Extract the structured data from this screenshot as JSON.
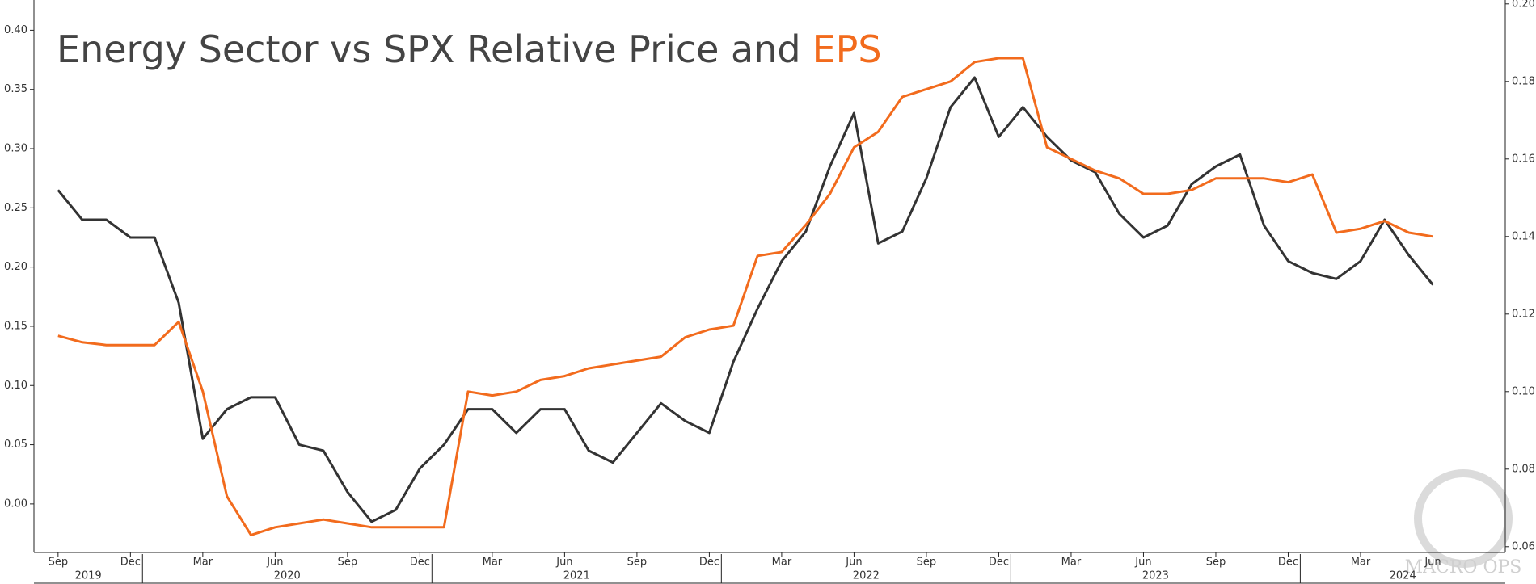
{
  "chart_data": {
    "type": "line",
    "title": "Energy Sector vs SPX Relative Price and",
    "title_highlight": "EPS",
    "watermark": "MACRO OPS",
    "x": [
      "2019-09",
      "2019-10",
      "2019-11",
      "2019-12",
      "2020-01",
      "2020-02",
      "2020-03",
      "2020-04",
      "2020-05",
      "2020-06",
      "2020-07",
      "2020-08",
      "2020-09",
      "2020-10",
      "2020-11",
      "2020-12",
      "2021-01",
      "2021-02",
      "2021-03",
      "2021-04",
      "2021-05",
      "2021-06",
      "2021-07",
      "2021-08",
      "2021-09",
      "2021-10",
      "2021-11",
      "2021-12",
      "2022-01",
      "2022-02",
      "2022-03",
      "2022-04",
      "2022-05",
      "2022-06",
      "2022-07",
      "2022-08",
      "2022-09",
      "2022-10",
      "2022-11",
      "2022-12",
      "2023-01",
      "2023-02",
      "2023-03",
      "2023-04",
      "2023-05",
      "2023-06",
      "2023-07",
      "2023-08",
      "2023-09",
      "2023-10",
      "2023-11",
      "2023-12",
      "2024-01",
      "2024-02",
      "2024-03",
      "2024-04",
      "2024-05",
      "2024-06"
    ],
    "series": [
      {
        "color": "#333333",
        "axis": "y",
        "values": [
          0.265,
          0.24,
          0.24,
          0.225,
          0.225,
          0.17,
          0.055,
          0.08,
          0.09,
          0.09,
          0.05,
          0.045,
          0.01,
          -0.015,
          -0.005,
          0.03,
          0.05,
          0.08,
          0.08,
          0.06,
          0.08,
          0.08,
          0.045,
          0.035,
          0.06,
          0.085,
          0.07,
          0.06,
          0.12,
          0.165,
          0.205,
          0.23,
          0.285,
          0.33,
          0.22,
          0.23,
          0.275,
          0.335,
          0.36,
          0.31,
          0.335,
          0.31,
          0.29,
          0.28,
          0.245,
          0.225,
          0.235,
          0.27,
          0.285,
          0.295,
          0.235,
          0.205,
          0.195,
          0.19,
          0.205,
          0.24,
          0.21,
          0.185
        ]
      },
      {
        "color": "#f26b1d",
        "axis": "y2",
        "values": [
          0.1144,
          0.1127,
          0.112,
          0.112,
          0.112,
          0.118,
          0.1,
          0.073,
          0.063,
          0.065,
          0.066,
          0.067,
          0.066,
          0.065,
          0.065,
          0.065,
          0.065,
          0.1,
          0.099,
          0.1,
          0.103,
          0.104,
          0.106,
          0.107,
          0.108,
          0.109,
          0.114,
          0.116,
          0.117,
          0.135,
          0.136,
          0.143,
          0.151,
          0.163,
          0.167,
          0.176,
          0.178,
          0.18,
          0.185,
          0.186,
          0.186,
          0.163,
          0.16,
          0.157,
          0.155,
          0.151,
          0.151,
          0.152,
          0.155,
          0.155,
          0.155,
          0.154,
          0.156,
          0.141,
          0.142,
          0.144,
          0.141,
          0.14
        ]
      }
    ],
    "xlim": [
      "2019-08",
      "2024-09"
    ],
    "xticks": [
      {
        "value": "2019-09",
        "label": "Sep"
      },
      {
        "value": "2019-12",
        "label": "Dec"
      },
      {
        "value": "2020-03",
        "label": "Mar"
      },
      {
        "value": "2020-06",
        "label": "Jun"
      },
      {
        "value": "2020-09",
        "label": "Sep"
      },
      {
        "value": "2020-12",
        "label": "Dec"
      },
      {
        "value": "2021-03",
        "label": "Mar"
      },
      {
        "value": "2021-06",
        "label": "Jun"
      },
      {
        "value": "2021-09",
        "label": "Sep"
      },
      {
        "value": "2021-12",
        "label": "Dec"
      },
      {
        "value": "2022-03",
        "label": "Mar"
      },
      {
        "value": "2022-06",
        "label": "Jun"
      },
      {
        "value": "2022-09",
        "label": "Sep"
      },
      {
        "value": "2022-12",
        "label": "Dec"
      },
      {
        "value": "2023-03",
        "label": "Mar"
      },
      {
        "value": "2023-06",
        "label": "Jun"
      },
      {
        "value": "2023-09",
        "label": "Sep"
      },
      {
        "value": "2023-12",
        "label": "Dec"
      },
      {
        "value": "2024-03",
        "label": "Mar"
      },
      {
        "value": "2024-06",
        "label": "Jun"
      }
    ],
    "years": [
      "2019",
      "2020",
      "2021",
      "2022",
      "2023",
      "2024"
    ],
    "ylim": [
      -0.041,
      0.4255
    ],
    "yticks": [
      {
        "value": 0,
        "label": "0.00"
      },
      {
        "value": 0.05,
        "label": "0.05"
      },
      {
        "value": 0.1,
        "label": "0.10"
      },
      {
        "value": 0.15,
        "label": "0.15"
      },
      {
        "value": 0.2,
        "label": "0.20"
      },
      {
        "value": 0.25,
        "label": "0.25"
      },
      {
        "value": 0.3,
        "label": "0.30"
      },
      {
        "value": 0.35,
        "label": "0.35"
      },
      {
        "value": 0.4,
        "label": "0.40"
      }
    ],
    "y2lim": [
      0.0585,
      0.201
    ],
    "y2ticks": [
      {
        "value": 0.06,
        "label": "0.06"
      },
      {
        "value": 0.08,
        "label": "0.08"
      },
      {
        "value": 0.1,
        "label": "0.10"
      },
      {
        "value": 0.12,
        "label": "0.12"
      },
      {
        "value": 0.14,
        "label": "0.14"
      },
      {
        "value": 0.16,
        "label": "0.16"
      },
      {
        "value": 0.18,
        "label": "0.18"
      },
      {
        "value": 0.2,
        "label": "0.20"
      }
    ],
    "grid": false
  }
}
